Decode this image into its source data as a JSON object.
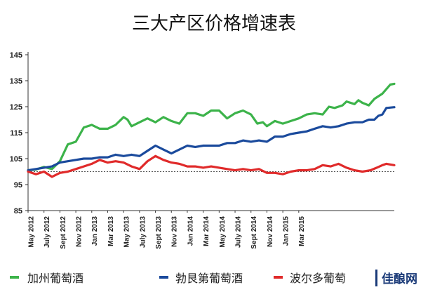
{
  "chart_data": {
    "type": "line",
    "title": "三大产区价格增速表",
    "ylim": [
      85,
      145
    ],
    "y_ticks": [
      85,
      95,
      105,
      115,
      125,
      135,
      145
    ],
    "x_ticks": [
      "May 2012",
      "July 2012",
      "Sept 2012",
      "Nov 2012",
      "Jan 2013",
      "Mar 2013",
      "May 2013",
      "July 2013",
      "Sept 2013",
      "Nov 2013",
      "Jan 2014",
      "Mar 2014",
      "May 2014",
      "July 2014",
      "Sept 2014",
      "Nov 2014",
      "Jan 2015",
      "Mar 2015"
    ],
    "x_start": "2012-05",
    "x_end": "2015-05",
    "reference_line": 100,
    "grid": false,
    "legend_position": "bottom",
    "series": [
      {
        "name": "加州葡萄酒",
        "color": "#3cb34a",
        "points": [
          [
            0,
            100.5
          ],
          [
            1,
            100.8
          ],
          [
            2,
            101.8
          ],
          [
            3,
            101.0
          ],
          [
            4,
            104.0
          ],
          [
            5,
            110.5
          ],
          [
            6,
            111.5
          ],
          [
            7,
            117.0
          ],
          [
            8,
            118.0
          ],
          [
            9,
            116.5
          ],
          [
            10,
            116.5
          ],
          [
            11,
            118.0
          ],
          [
            12,
            121.0
          ],
          [
            12.5,
            120.0
          ],
          [
            13,
            117.5
          ],
          [
            14,
            119.0
          ],
          [
            15,
            120.5
          ],
          [
            16,
            119.0
          ],
          [
            17,
            121.0
          ],
          [
            18,
            119.5
          ],
          [
            19,
            118.5
          ],
          [
            20,
            122.5
          ],
          [
            21,
            122.5
          ],
          [
            22,
            121.5
          ],
          [
            23,
            123.5
          ],
          [
            24,
            123.5
          ],
          [
            25,
            120.5
          ],
          [
            26,
            122.5
          ],
          [
            27,
            123.5
          ],
          [
            28,
            122.0
          ],
          [
            28.8,
            118.5
          ],
          [
            29.5,
            119.0
          ],
          [
            30,
            117.5
          ],
          [
            31,
            119.5
          ],
          [
            32,
            118.5
          ],
          [
            33,
            119.5
          ],
          [
            34,
            120.5
          ],
          [
            35,
            122.0
          ],
          [
            36,
            122.5
          ],
          [
            37,
            122.0
          ],
          [
            37.8,
            125.0
          ],
          [
            38.5,
            124.5
          ],
          [
            39.5,
            125.5
          ],
          [
            40,
            127.0
          ],
          [
            41,
            126.0
          ],
          [
            41.5,
            127.5
          ],
          [
            42,
            126.5
          ],
          [
            42.8,
            125.5
          ],
          [
            43.5,
            128.0
          ],
          [
            44.5,
            130.0
          ],
          [
            45.5,
            133.5
          ],
          [
            46,
            133.8
          ]
        ]
      },
      {
        "name": "勃艮第葡萄酒",
        "color": "#1a4a9c",
        "points": [
          [
            0,
            100.5
          ],
          [
            1,
            101.0
          ],
          [
            2,
            101.5
          ],
          [
            3,
            102.0
          ],
          [
            4,
            103.5
          ],
          [
            5,
            104.0
          ],
          [
            6,
            104.5
          ],
          [
            7,
            105.0
          ],
          [
            8,
            105.0
          ],
          [
            9,
            105.5
          ],
          [
            10,
            105.5
          ],
          [
            11,
            106.5
          ],
          [
            12,
            106.0
          ],
          [
            13,
            106.5
          ],
          [
            14,
            106.0
          ],
          [
            15,
            108.0
          ],
          [
            16,
            110.0
          ],
          [
            17,
            108.5
          ],
          [
            18,
            107.0
          ],
          [
            19,
            108.5
          ],
          [
            20,
            110.0
          ],
          [
            21,
            109.5
          ],
          [
            22,
            110.0
          ],
          [
            23,
            110.0
          ],
          [
            24,
            110.0
          ],
          [
            25,
            111.0
          ],
          [
            26,
            111.0
          ],
          [
            27,
            112.0
          ],
          [
            28,
            111.5
          ],
          [
            29,
            112.0
          ],
          [
            30,
            111.5
          ],
          [
            31,
            113.5
          ],
          [
            32,
            113.5
          ],
          [
            33,
            114.5
          ],
          [
            34,
            115.0
          ],
          [
            35,
            115.5
          ],
          [
            36,
            116.5
          ],
          [
            37,
            117.5
          ],
          [
            38,
            117.0
          ],
          [
            39,
            117.5
          ],
          [
            40,
            118.5
          ],
          [
            41,
            119.0
          ],
          [
            42,
            119.0
          ],
          [
            42.8,
            120.0
          ],
          [
            43.5,
            120.0
          ],
          [
            44,
            121.5
          ],
          [
            44.5,
            122.0
          ],
          [
            45,
            124.5
          ],
          [
            46,
            124.8
          ]
        ]
      },
      {
        "name": "波尔多葡萄",
        "color": "#e02a2a",
        "points": [
          [
            0,
            100.0
          ],
          [
            1,
            99.0
          ],
          [
            2,
            100.0
          ],
          [
            3,
            98.0
          ],
          [
            4,
            99.5
          ],
          [
            5,
            100.0
          ],
          [
            6,
            101.0
          ],
          [
            7,
            102.0
          ],
          [
            8,
            103.0
          ],
          [
            9,
            104.5
          ],
          [
            10,
            103.5
          ],
          [
            11,
            104.0
          ],
          [
            12,
            103.5
          ],
          [
            13,
            102.0
          ],
          [
            14,
            101.0
          ],
          [
            15,
            104.0
          ],
          [
            16,
            106.0
          ],
          [
            17,
            104.5
          ],
          [
            18,
            103.5
          ],
          [
            19,
            103.0
          ],
          [
            20,
            102.0
          ],
          [
            21,
            102.0
          ],
          [
            22,
            101.5
          ],
          [
            23,
            102.0
          ],
          [
            24,
            101.5
          ],
          [
            25,
            101.0
          ],
          [
            26,
            100.5
          ],
          [
            27,
            101.0
          ],
          [
            28,
            100.5
          ],
          [
            29,
            101.0
          ],
          [
            30,
            99.5
          ],
          [
            31,
            99.5
          ],
          [
            32,
            99.0
          ],
          [
            33,
            100.0
          ],
          [
            34,
            100.5
          ],
          [
            35,
            100.5
          ],
          [
            36,
            101.0
          ],
          [
            37,
            102.5
          ],
          [
            38,
            102.0
          ],
          [
            39,
            103.0
          ],
          [
            40,
            101.5
          ],
          [
            41,
            100.5
          ],
          [
            42,
            100.0
          ],
          [
            43,
            100.5
          ],
          [
            43.8,
            101.5
          ],
          [
            44.5,
            102.5
          ],
          [
            45,
            103.0
          ],
          [
            46,
            102.5
          ]
        ]
      }
    ]
  },
  "watermark": {
    "text": "佳酿网"
  }
}
